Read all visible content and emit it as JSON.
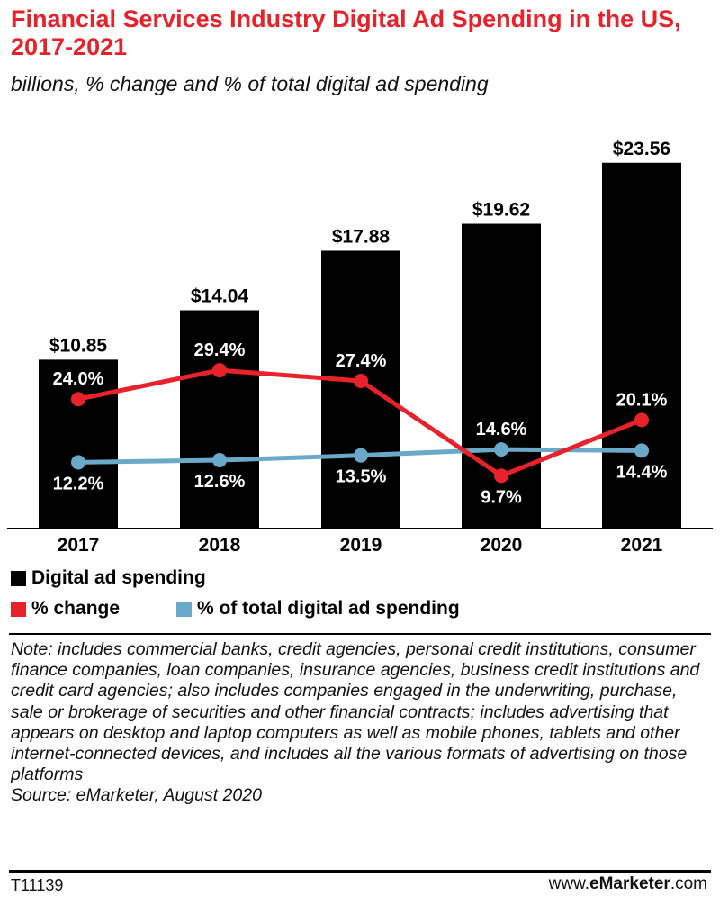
{
  "title": "Financial Services Industry Digital Ad Spending in the US, 2017-2021",
  "subtitle": "billions, % change and % of total digital ad spending",
  "colors": {
    "bars": "#000000",
    "pct_change": "#e8222a",
    "pct_total": "#6aa9c9",
    "title": "#e8222a"
  },
  "chart_data": {
    "type": "bar",
    "categories": [
      "2017",
      "2018",
      "2019",
      "2020",
      "2021"
    ],
    "series": [
      {
        "name": "Digital ad spending",
        "type": "bar",
        "values": [
          10.85,
          14.04,
          17.88,
          19.62,
          23.56
        ],
        "labels": [
          "$10.85",
          "$14.04",
          "$17.88",
          "$19.62",
          "$23.56"
        ]
      },
      {
        "name": "% change",
        "type": "line",
        "values": [
          24.0,
          29.4,
          27.4,
          9.7,
          20.1
        ],
        "labels": [
          "24.0%",
          "29.4%",
          "27.4%",
          "9.7%",
          "20.1%"
        ]
      },
      {
        "name": "% of total digital ad spending",
        "type": "line",
        "values": [
          12.2,
          12.6,
          13.5,
          14.6,
          14.4
        ],
        "labels": [
          "12.2%",
          "12.6%",
          "13.5%",
          "14.6%",
          "14.4%"
        ]
      }
    ],
    "grid": false,
    "legend_position": "bottom-left"
  },
  "legend": {
    "bars": "Digital ad spending",
    "change": "% change",
    "total": "% of total digital ad spending"
  },
  "note": "Note: includes commercial banks, credit agencies, personal credit institutions, consumer finance companies, loan companies, insurance agencies, business credit institutions and credit card agencies; also includes companies engaged in the underwriting, purchase, sale or brokerage of securities and other financial contracts; includes advertising that appears on desktop and laptop computers as well as mobile phones, tablets and other internet-connected devices, and includes all the various formats of advertising on those platforms",
  "source": "Source: eMarketer, August 2020",
  "footer": {
    "id": "T11139",
    "brand_pre": "www.",
    "brand_bold": "eMarketer",
    "brand_post": ".com"
  }
}
